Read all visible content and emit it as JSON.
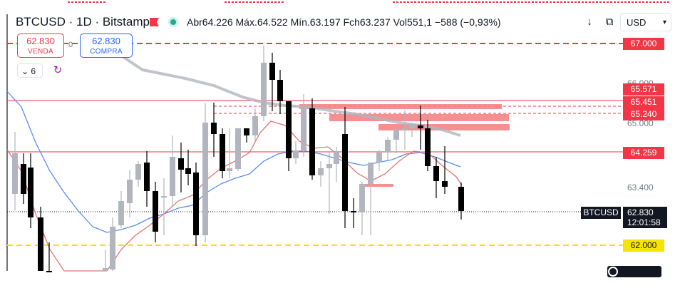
{
  "header": {
    "symbol": "BTCUSD",
    "interval": "1D",
    "exchange": "Bitstamp",
    "title": "BTCUSD · 1D · Bitstamp",
    "open": "Abr64.226",
    "high": "Máx.64.522",
    "low": "Mín.63.197",
    "close": "Fch63.237",
    "volume": "Vol551,1",
    "change": "−588 (−0,93%)",
    "currency": "USD",
    "icons": [
      "flag-icon",
      "live-dot-icon",
      "arrow-down-icon",
      "compare-icon",
      "chevron-down-icon"
    ]
  },
  "trade": {
    "sell_price": "62.830",
    "sell_label": "VENDA",
    "buy_price": "62.830",
    "buy_label": "COMPRA",
    "spread": "0"
  },
  "indicators": {
    "visibility_count": "6",
    "visibility_icon": "chevron-down-icon",
    "loading_icon": "spinner-icon"
  },
  "price_axis": {
    "labels": [
      {
        "text": "67.000",
        "kind": "alert",
        "color": "#f23645"
      },
      {
        "text": "65.571",
        "kind": "level",
        "color": "#f23645"
      },
      {
        "text": "65.451",
        "kind": "level",
        "color": "#f23645"
      },
      {
        "text": "65.240",
        "kind": "level",
        "color": "#f23645"
      },
      {
        "text": "64.259",
        "kind": "level",
        "color": "#f23645"
      },
      {
        "text": "62.000",
        "kind": "alert",
        "color": "#f5e400"
      }
    ],
    "ticks": [
      "66.000",
      "65.000",
      "63.400"
    ],
    "last_price": "62.830",
    "countdown": "12:01:58",
    "symbol_tag": "BTCUSD"
  },
  "colors": {
    "up": "#b2b5be",
    "down": "#000000",
    "ma_fast": "#e57373",
    "ma_mid": "#5b8def",
    "ma_slow": "#b2b5be",
    "level": "#f23645",
    "alert_yellow": "#f5e400"
  }
}
